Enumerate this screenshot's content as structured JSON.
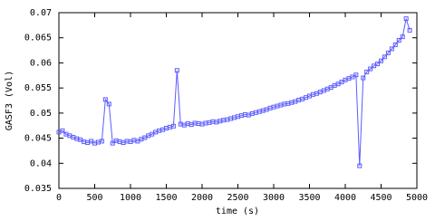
{
  "chart_data": {
    "type": "line",
    "x_label": "time (s)",
    "y_label": "GASF3 (Vol)",
    "color": "#5c5cff",
    "marker": "square",
    "grid": false,
    "xlim": [
      0,
      5000
    ],
    "xticks": [
      0,
      500,
      1000,
      1500,
      2000,
      2500,
      3000,
      3500,
      4000,
      4500,
      5000
    ],
    "ylim": [
      0.035,
      0.07
    ],
    "yticks": [
      0.035,
      0.04,
      0.045,
      0.05,
      0.055,
      0.06,
      0.065,
      0.07
    ],
    "x": [
      0,
      50,
      100,
      150,
      200,
      250,
      300,
      350,
      400,
      450,
      500,
      550,
      600,
      650,
      700,
      750,
      800,
      850,
      900,
      950,
      1000,
      1050,
      1100,
      1150,
      1200,
      1250,
      1300,
      1350,
      1400,
      1450,
      1500,
      1550,
      1600,
      1650,
      1700,
      1750,
      1800,
      1850,
      1900,
      1950,
      2000,
      2050,
      2100,
      2150,
      2200,
      2250,
      2300,
      2350,
      2400,
      2450,
      2500,
      2550,
      2600,
      2650,
      2700,
      2750,
      2800,
      2850,
      2900,
      2950,
      3000,
      3050,
      3100,
      3150,
      3200,
      3250,
      3300,
      3350,
      3400,
      3450,
      3500,
      3550,
      3600,
      3650,
      3700,
      3750,
      3800,
      3850,
      3900,
      3950,
      4000,
      4050,
      4100,
      4150,
      4200,
      4250,
      4300,
      4350,
      4400,
      4450,
      4500,
      4550,
      4600,
      4650,
      4700,
      4750,
      4800,
      4850,
      4900
    ],
    "values": [
      0.0462,
      0.0465,
      0.0458,
      0.0455,
      0.0452,
      0.0449,
      0.0447,
      0.0443,
      0.0441,
      0.0444,
      0.044,
      0.0442,
      0.0444,
      0.0527,
      0.0518,
      0.044,
      0.0445,
      0.0443,
      0.0441,
      0.0444,
      0.0443,
      0.0446,
      0.0444,
      0.0448,
      0.0451,
      0.0455,
      0.0458,
      0.0462,
      0.0465,
      0.0467,
      0.047,
      0.0472,
      0.0474,
      0.0585,
      0.0478,
      0.0476,
      0.0479,
      0.0477,
      0.048,
      0.0479,
      0.0478,
      0.048,
      0.0481,
      0.0483,
      0.0482,
      0.0484,
      0.0486,
      0.0487,
      0.0489,
      0.0491,
      0.0493,
      0.0495,
      0.0497,
      0.0496,
      0.0499,
      0.0501,
      0.0503,
      0.0505,
      0.0507,
      0.051,
      0.0512,
      0.0514,
      0.0516,
      0.0518,
      0.0519,
      0.0521,
      0.0523,
      0.0526,
      0.0528,
      0.0531,
      0.0534,
      0.0537,
      0.0539,
      0.0542,
      0.0545,
      0.0548,
      0.0551,
      0.0555,
      0.0558,
      0.0562,
      0.0566,
      0.0569,
      0.0572,
      0.0576,
      0.0395,
      0.057,
      0.0582,
      0.0588,
      0.0594,
      0.0598,
      0.0604,
      0.0612,
      0.062,
      0.0628,
      0.0636,
      0.0645,
      0.0652,
      0.0688,
      0.0665
    ]
  }
}
